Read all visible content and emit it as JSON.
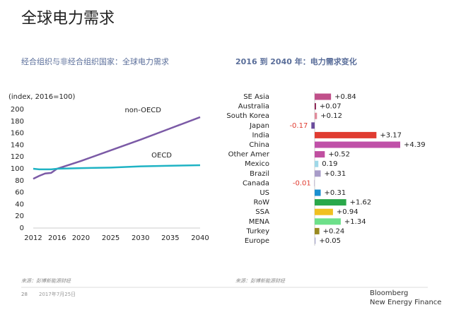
{
  "title": "全球电力需求",
  "chart_data": [
    {
      "type": "line",
      "title": "经合组织与非经合组织国家：全球电力需求",
      "y_label": "(index, 2016=100)",
      "x": [
        2012,
        2013,
        2014,
        2015,
        2016,
        2020,
        2025,
        2030,
        2035,
        2040
      ],
      "series": [
        {
          "name": "non-OECD",
          "color": "#7b5aa6",
          "values": [
            83,
            88,
            92,
            93,
            100,
            113,
            131,
            149,
            168,
            187
          ]
        },
        {
          "name": "OECD",
          "color": "#1fb3c4",
          "values": [
            100,
            99,
            99,
            99,
            100,
            101,
            102,
            104,
            105,
            106
          ]
        }
      ],
      "xlim": [
        2012,
        2040
      ],
      "xticks": [
        2012,
        2016,
        2020,
        2025,
        2030,
        2035,
        2040
      ],
      "ylim": [
        0,
        200
      ],
      "yticks": [
        0,
        20,
        40,
        60,
        80,
        100,
        120,
        140,
        160,
        180,
        200
      ],
      "grid": false
    },
    {
      "type": "hbar",
      "title": "2016 到 2040 年：电力需求变化",
      "categories": [
        "SE Asia",
        "Australia",
        "South Korea",
        "Japan",
        "India",
        "China",
        "Other Amer",
        "Mexico",
        "Brazil",
        "Canada",
        "US",
        "RoW",
        "SSA",
        "MENA",
        "Turkey",
        "Europe"
      ],
      "values": [
        0.84,
        0.07,
        0.12,
        -0.17,
        3.17,
        4.39,
        0.52,
        0.19,
        0.31,
        -0.01,
        0.31,
        1.62,
        0.94,
        1.34,
        0.24,
        0.05
      ],
      "value_labels": [
        "+0.84",
        "+0.07",
        "+0.12",
        "-0.17",
        "+3.17",
        "+4.39",
        "+0.52",
        "0.19",
        "+0.31",
        "-0.01",
        "+0.31",
        "+1.62",
        "+0.94",
        "+1.34",
        "+0.24",
        "+0.05"
      ],
      "colors": [
        "#c0508a",
        "#8b2252",
        "#e08a9a",
        "#6a4c9c",
        "#e03c31",
        "#c050a8",
        "#c04fa0",
        "#9fd8e8",
        "#a89cc8",
        "#6b4c9a",
        "#1a8fd0",
        "#2aa84a",
        "#f0c020",
        "#6de08a",
        "#9a8a20",
        "#b0b0d0"
      ],
      "negative_label_color": "#e03c31"
    }
  ],
  "footer": {
    "source_left": "来源：彭博新能源财经",
    "source_right": "来源：彭博新能源财经",
    "page": "28",
    "date": "2017年7月25日",
    "brand": "Bloomberg",
    "brand_sub": "New Energy Finance"
  }
}
